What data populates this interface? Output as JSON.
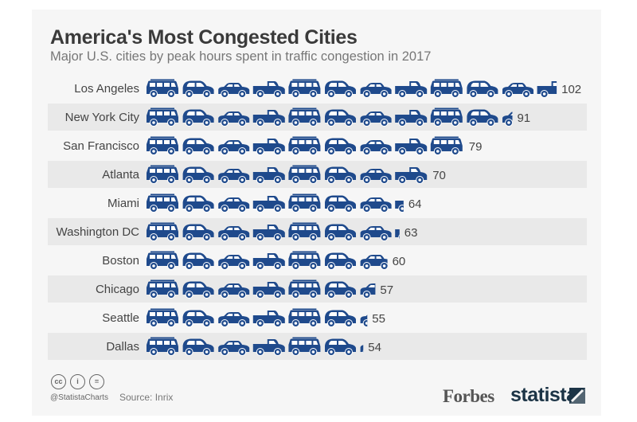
{
  "chart_data": {
    "type": "bar",
    "style": "pictogram",
    "title": "America's Most Congested Cities",
    "subtitle": "Major U.S. cities by peak hours spent in traffic congestion in 2017",
    "categories": [
      "Los Angeles",
      "New York City",
      "San Francisco",
      "Atlanta",
      "Miami",
      "Washington DC",
      "Boston",
      "Chicago",
      "Seattle",
      "Dallas"
    ],
    "values": [
      102,
      91,
      79,
      70,
      64,
      63,
      60,
      57,
      55,
      54
    ],
    "xlabel": "",
    "ylabel": "",
    "grid": false,
    "icon_sequence": [
      "van-icon",
      "hatchback-icon",
      "sedan-icon",
      "pickup-icon"
    ],
    "colors": {
      "bar": "#1f4a8c",
      "stripe": "#e9e9e9"
    }
  },
  "footer": {
    "handle": "@StatistaCharts",
    "source": "Source: Inrix",
    "license_icons": [
      "cc",
      "i",
      "="
    ],
    "brand_forbes": "Forbes",
    "brand_statista": "statista"
  }
}
